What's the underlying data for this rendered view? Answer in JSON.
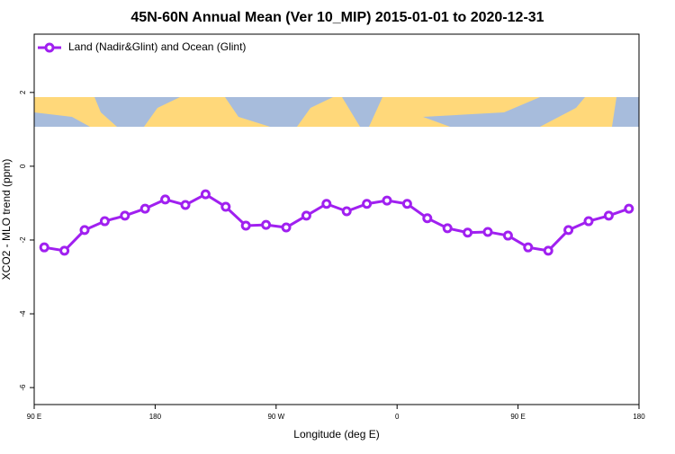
{
  "chart_data": {
    "type": "line",
    "title": "45N-60N Annual Mean (Ver 10_MIP)   2015-01-01 to 2020-12-31",
    "xlabel": "Longitude (deg E)",
    "ylabel": "XCO2 - MLO trend (ppm)",
    "x": [
      97.5,
      112.5,
      127.5,
      142.5,
      157.5,
      172.5,
      187.5,
      202.5,
      217.5,
      232.5,
      247.5,
      262.5,
      277.5,
      292.5,
      307.5,
      322.5,
      337.5,
      352.5,
      367.5,
      382.5,
      397.5,
      412.5,
      427.5,
      442.5,
      457.5,
      472.5,
      487.5,
      502.5,
      517.5,
      532.5
    ],
    "series": [
      {
        "name": "Land (Nadir&Glint) and Ocean (Glint)",
        "color": "#a020f0",
        "values": [
          -2.2,
          -2.29,
          -1.73,
          -1.49,
          -1.34,
          -1.15,
          -0.9,
          -1.05,
          -0.76,
          -1.1,
          -1.61,
          -1.59,
          -1.66,
          -1.34,
          -1.02,
          -1.22,
          -1.02,
          -0.93,
          -1.02,
          -1.41,
          -1.68,
          -1.8,
          -1.78,
          -1.88,
          -2.2,
          -2.29,
          -1.73,
          -1.49,
          -1.34,
          -1.15
        ]
      }
    ],
    "xlim": [
      90,
      540
    ],
    "xticks": [
      {
        "value": 90,
        "label": "90 E"
      },
      180,
      {
        "value": 270,
        "label": "90 W"
      },
      {
        "value": 360,
        "label": "0"
      },
      {
        "value": 450,
        "label": "90 E"
      },
      {
        "value": 540,
        "label": "180"
      }
    ],
    "ylim": [
      -6.46,
      3.58
    ],
    "yticks": [
      2,
      0,
      -2,
      -4,
      -6
    ],
    "legend": "top-left",
    "grid": false
  }
}
